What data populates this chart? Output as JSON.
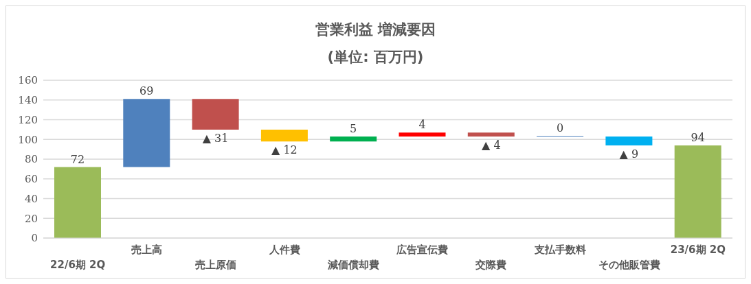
{
  "chart_data": {
    "type": "bar",
    "title": "営業利益 増減要因",
    "subtitle": "(単位: 百万円)",
    "categories": [
      "22/6期 2Q",
      "売上高",
      "売上原価",
      "人件費",
      "減価償却費",
      "広告宣伝費",
      "交際費",
      "支払手数料",
      "その他販管費",
      "23/6期 2Q"
    ],
    "values": [
      72,
      69,
      -31,
      -12,
      5,
      4,
      -4,
      0,
      -9,
      94
    ],
    "base": [
      0,
      72,
      141,
      110,
      98,
      103,
      107,
      103,
      103,
      0
    ],
    "colors": [
      "#9bbb59",
      "#4f81bd",
      "#c0504d",
      "#ffc000",
      "#00b050",
      "#ff0000",
      "#c0504d",
      "#4f81bd",
      "#00b0f0",
      "#9bbb59"
    ],
    "value_labels": [
      "72",
      "69",
      "▲ 31",
      "▲ 12",
      "5",
      "4",
      "▲ 4",
      "0",
      "▲ 9",
      "94"
    ],
    "ylim": [
      0,
      160
    ],
    "yticks": [
      0,
      20,
      40,
      60,
      80,
      100,
      120,
      140,
      160
    ],
    "grid": "y"
  }
}
